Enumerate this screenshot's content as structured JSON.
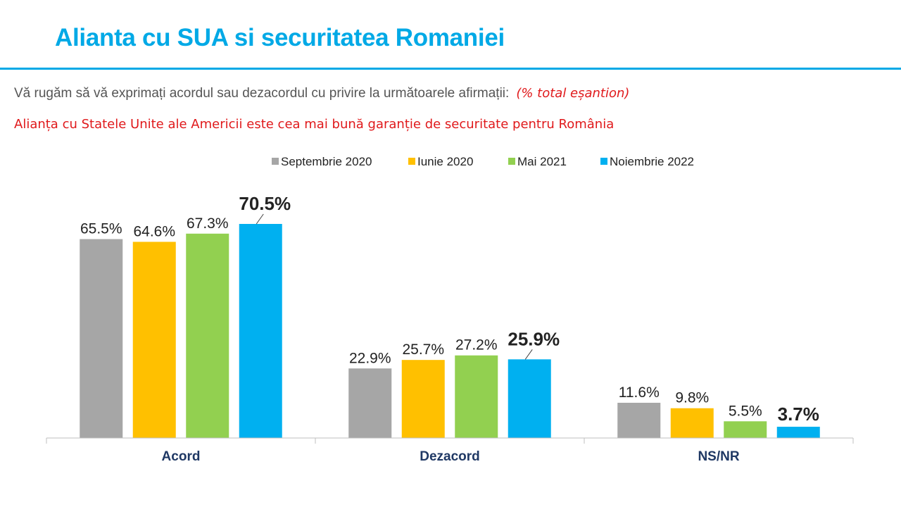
{
  "slide": {
    "title": "Alianta cu SUA si securitatea Romaniei",
    "question": "Vă rugăm să vă exprimați acordul sau dezacordul cu privire la următoarele afirmații:",
    "question_note": "(% total eșantion)",
    "statement": "Alianța cu Statele Unite ale Americii este cea mai bună garanție de securitate pentru România"
  },
  "chart_data": {
    "type": "bar",
    "title": "",
    "xlabel": "",
    "ylabel": "",
    "ylim": [
      0,
      75
    ],
    "grid": false,
    "legend_position": "top-center",
    "categories": [
      "Acord",
      "Dezacord",
      "NS/NR"
    ],
    "series": [
      {
        "name": "Septembrie 2020",
        "color": "#a6a6a6",
        "values": [
          65.5,
          22.9,
          11.6
        ],
        "labels": [
          "65.5%",
          "22.9%",
          "11.6%"
        ]
      },
      {
        "name": "Iunie 2020",
        "color": "#ffc000",
        "values": [
          64.6,
          25.7,
          9.8
        ],
        "labels": [
          "64.6%",
          "25.7%",
          "9.8%"
        ]
      },
      {
        "name": "Mai 2021",
        "color": "#92d050",
        "values": [
          67.3,
          27.2,
          5.5
        ],
        "labels": [
          "67.3%",
          "27.2%",
          "5.5%"
        ]
      },
      {
        "name": "Noiembrie 2022",
        "color": "#00b0f0",
        "values": [
          70.5,
          25.9,
          3.7
        ],
        "labels": [
          "70.5%",
          "25.9%",
          "3.7%"
        ],
        "highlight": true
      }
    ]
  }
}
